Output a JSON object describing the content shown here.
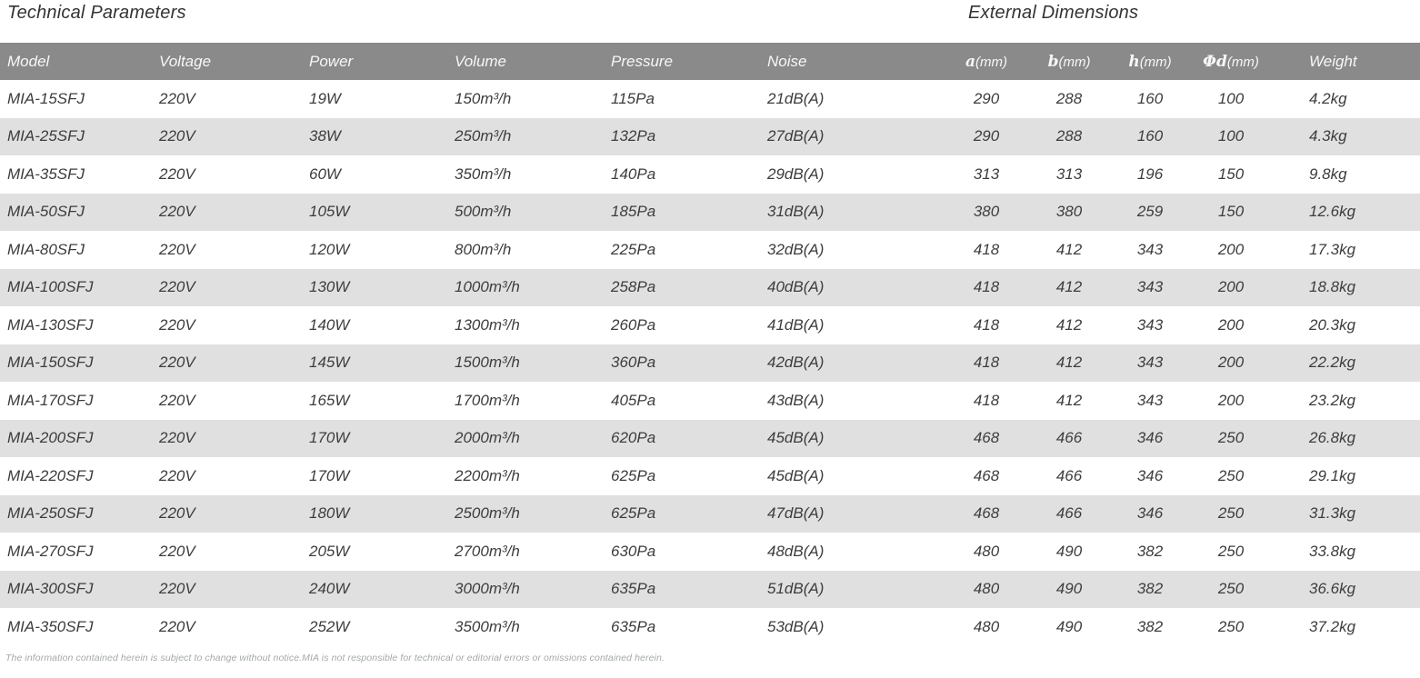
{
  "titles": {
    "left": "Technical Parameters",
    "right": "External Dimensions"
  },
  "table": {
    "headers": {
      "model": "Model",
      "voltage": "Voltage",
      "power": "Power",
      "volume": "Volume",
      "pressure": "Pressure",
      "noise": "Noise",
      "a_letter": "a",
      "a_unit": "(mm)",
      "b_letter": "b",
      "b_unit": "(mm)",
      "h_letter": "h",
      "h_unit": "(mm)",
      "phid_letter": "Φd",
      "phid_unit": "(mm)",
      "weight": "Weight"
    },
    "rows": [
      {
        "model": "MIA-15SFJ",
        "voltage": "220V",
        "power": "19W",
        "volume": "150m³/h",
        "pressure": "115Pa",
        "noise": "21dB(A)",
        "a": "290",
        "b": "288",
        "h": "160",
        "phid": "100",
        "weight": "4.2kg"
      },
      {
        "model": "MIA-25SFJ",
        "voltage": "220V",
        "power": "38W",
        "volume": "250m³/h",
        "pressure": "132Pa",
        "noise": "27dB(A)",
        "a": "290",
        "b": "288",
        "h": "160",
        "phid": "100",
        "weight": "4.3kg"
      },
      {
        "model": "MIA-35SFJ",
        "voltage": "220V",
        "power": "60W",
        "volume": "350m³/h",
        "pressure": "140Pa",
        "noise": "29dB(A)",
        "a": "313",
        "b": "313",
        "h": "196",
        "phid": "150",
        "weight": "9.8kg"
      },
      {
        "model": "MIA-50SFJ",
        "voltage": "220V",
        "power": "105W",
        "volume": "500m³/h",
        "pressure": "185Pa",
        "noise": "31dB(A)",
        "a": "380",
        "b": "380",
        "h": "259",
        "phid": "150",
        "weight": "12.6kg"
      },
      {
        "model": "MIA-80SFJ",
        "voltage": "220V",
        "power": "120W",
        "volume": "800m³/h",
        "pressure": "225Pa",
        "noise": "32dB(A)",
        "a": "418",
        "b": "412",
        "h": "343",
        "phid": "200",
        "weight": "17.3kg"
      },
      {
        "model": "MIA-100SFJ",
        "voltage": "220V",
        "power": "130W",
        "volume": "1000m³/h",
        "pressure": "258Pa",
        "noise": "40dB(A)",
        "a": "418",
        "b": "412",
        "h": "343",
        "phid": "200",
        "weight": "18.8kg"
      },
      {
        "model": "MIA-130SFJ",
        "voltage": "220V",
        "power": "140W",
        "volume": "1300m³/h",
        "pressure": "260Pa",
        "noise": "41dB(A)",
        "a": "418",
        "b": "412",
        "h": "343",
        "phid": "200",
        "weight": "20.3kg"
      },
      {
        "model": "MIA-150SFJ",
        "voltage": "220V",
        "power": "145W",
        "volume": "1500m³/h",
        "pressure": "360Pa",
        "noise": "42dB(A)",
        "a": "418",
        "b": "412",
        "h": "343",
        "phid": "200",
        "weight": "22.2kg"
      },
      {
        "model": "MIA-170SFJ",
        "voltage": "220V",
        "power": "165W",
        "volume": "1700m³/h",
        "pressure": "405Pa",
        "noise": "43dB(A)",
        "a": "418",
        "b": "412",
        "h": "343",
        "phid": "200",
        "weight": "23.2kg"
      },
      {
        "model": "MIA-200SFJ",
        "voltage": "220V",
        "power": "170W",
        "volume": "2000m³/h",
        "pressure": "620Pa",
        "noise": "45dB(A)",
        "a": "468",
        "b": "466",
        "h": "346",
        "phid": "250",
        "weight": "26.8kg"
      },
      {
        "model": "MIA-220SFJ",
        "voltage": "220V",
        "power": "170W",
        "volume": "2200m³/h",
        "pressure": "625Pa",
        "noise": "45dB(A)",
        "a": "468",
        "b": "466",
        "h": "346",
        "phid": "250",
        "weight": "29.1kg"
      },
      {
        "model": "MIA-250SFJ",
        "voltage": "220V",
        "power": "180W",
        "volume": "2500m³/h",
        "pressure": "625Pa",
        "noise": "47dB(A)",
        "a": "468",
        "b": "466",
        "h": "346",
        "phid": "250",
        "weight": "31.3kg"
      },
      {
        "model": "MIA-270SFJ",
        "voltage": "220V",
        "power": "205W",
        "volume": "2700m³/h",
        "pressure": "630Pa",
        "noise": "48dB(A)",
        "a": "480",
        "b": "490",
        "h": "382",
        "phid": "250",
        "weight": "33.8kg"
      },
      {
        "model": "MIA-300SFJ",
        "voltage": "220V",
        "power": "240W",
        "volume": "3000m³/h",
        "pressure": "635Pa",
        "noise": "51dB(A)",
        "a": "480",
        "b": "490",
        "h": "382",
        "phid": "250",
        "weight": "36.6kg"
      },
      {
        "model": "MIA-350SFJ",
        "voltage": "220V",
        "power": "252W",
        "volume": "3500m³/h",
        "pressure": "635Pa",
        "noise": "53dB(A)",
        "a": "480",
        "b": "490",
        "h": "382",
        "phid": "250",
        "weight": "37.2kg"
      }
    ]
  },
  "footer": {
    "disclaimer": "The information contained herein is subject to change without notice.MIA is not responsible for technical or editorial errors or omissions contained herein."
  },
  "colors": {
    "header_bg": "#8a8a8a",
    "alt_row_bg": "#e0e0e0",
    "body_text": "#3d3d3d",
    "header_text": "#f7f7f7",
    "footer_text": "#a3a9ad"
  }
}
